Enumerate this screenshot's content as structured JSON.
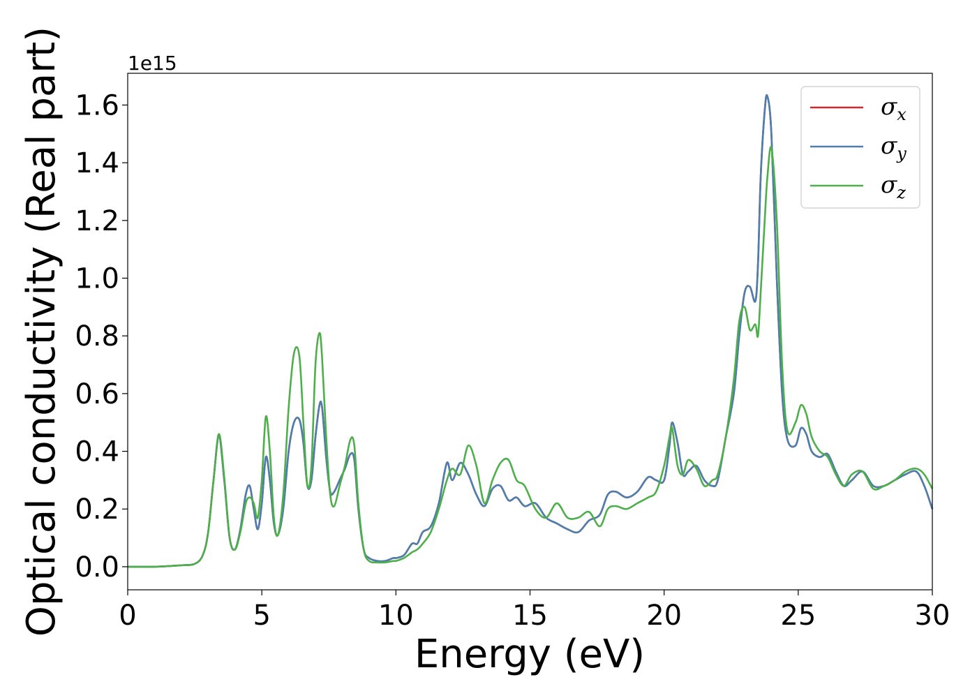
{
  "chart_data": {
    "type": "line",
    "title": "",
    "xlabel": "Energy (eV)",
    "ylabel": "Optical conductivity (Real part)",
    "y_offset_label": "1e15",
    "xlim": [
      0,
      30
    ],
    "ylim": [
      -0.08,
      1.71
    ],
    "xticks": [
      0,
      5,
      10,
      15,
      20,
      25,
      30
    ],
    "xtick_labels": [
      "0",
      "5",
      "10",
      "15",
      "20",
      "25",
      "30"
    ],
    "yticks": [
      0.0,
      0.2,
      0.4,
      0.6,
      0.8,
      1.0,
      1.2,
      1.4,
      1.6
    ],
    "ytick_labels": [
      "0.0",
      "0.2",
      "0.4",
      "0.6",
      "0.8",
      "1.0",
      "1.2",
      "1.4",
      "1.6"
    ],
    "grid": false,
    "legend_position": "top-right",
    "series": [
      {
        "name": "σx",
        "symbol": "σ",
        "subscript": "x",
        "color": "#d62728",
        "x": [
          0,
          1,
          2,
          2.5,
          2.8,
          3.0,
          3.2,
          3.4,
          3.6,
          3.8,
          4.0,
          4.2,
          4.4,
          4.55,
          4.7,
          4.85,
          5.0,
          5.15,
          5.3,
          5.45,
          5.6,
          5.8,
          6.0,
          6.2,
          6.4,
          6.55,
          6.7,
          6.85,
          7.0,
          7.15,
          7.25,
          7.4,
          7.55,
          7.7,
          7.9,
          8.1,
          8.3,
          8.45,
          8.6,
          8.8,
          9.0,
          9.3,
          9.6,
          9.9,
          10.0,
          10.3,
          10.6,
          10.8,
          11.0,
          11.3,
          11.6,
          11.9,
          12.1,
          12.4,
          12.7,
          13.0,
          13.3,
          13.6,
          13.9,
          14.2,
          14.5,
          14.8,
          15.2,
          15.6,
          16.0,
          16.4,
          16.8,
          17.2,
          17.6,
          17.9,
          18.2,
          18.6,
          19.0,
          19.4,
          19.7,
          20.0,
          20.2,
          20.3,
          20.5,
          20.7,
          20.9,
          21.2,
          21.5,
          21.8,
          22.0,
          22.3,
          22.6,
          22.8,
          23.0,
          23.2,
          23.4,
          23.5,
          23.6,
          23.75,
          23.85,
          24.0,
          24.2,
          24.4,
          24.6,
          24.9,
          25.1,
          25.3,
          25.5,
          25.8,
          26.1,
          26.4,
          26.7,
          27.0,
          27.4,
          27.8,
          28.2,
          28.6,
          29.0,
          29.4,
          29.7,
          30.0
        ],
        "y": [
          0.0,
          0.0,
          0.005,
          0.01,
          0.04,
          0.12,
          0.3,
          0.45,
          0.3,
          0.1,
          0.06,
          0.13,
          0.25,
          0.28,
          0.2,
          0.13,
          0.22,
          0.38,
          0.3,
          0.15,
          0.11,
          0.2,
          0.4,
          0.5,
          0.51,
          0.43,
          0.28,
          0.3,
          0.45,
          0.56,
          0.55,
          0.38,
          0.26,
          0.26,
          0.3,
          0.34,
          0.39,
          0.37,
          0.2,
          0.06,
          0.03,
          0.02,
          0.02,
          0.03,
          0.03,
          0.04,
          0.08,
          0.08,
          0.12,
          0.14,
          0.22,
          0.36,
          0.3,
          0.36,
          0.32,
          0.25,
          0.21,
          0.27,
          0.28,
          0.23,
          0.24,
          0.21,
          0.22,
          0.17,
          0.15,
          0.13,
          0.12,
          0.16,
          0.18,
          0.25,
          0.26,
          0.24,
          0.26,
          0.31,
          0.3,
          0.3,
          0.42,
          0.5,
          0.43,
          0.32,
          0.33,
          0.35,
          0.3,
          0.28,
          0.3,
          0.45,
          0.6,
          0.8,
          0.95,
          0.97,
          0.92,
          1.05,
          1.35,
          1.58,
          1.63,
          1.5,
          1.0,
          0.6,
          0.44,
          0.42,
          0.48,
          0.46,
          0.4,
          0.38,
          0.39,
          0.33,
          0.28,
          0.3,
          0.33,
          0.28,
          0.28,
          0.3,
          0.32,
          0.33,
          0.28,
          0.2
        ],
        "note": ""
      },
      {
        "name": "σy",
        "symbol": "σ",
        "subscript": "y",
        "color": "#4a7fb0",
        "x": [
          0,
          1,
          2,
          2.5,
          2.8,
          3.0,
          3.2,
          3.4,
          3.6,
          3.8,
          4.0,
          4.2,
          4.4,
          4.55,
          4.7,
          4.85,
          5.0,
          5.15,
          5.3,
          5.45,
          5.6,
          5.8,
          6.0,
          6.2,
          6.4,
          6.55,
          6.7,
          6.85,
          7.0,
          7.15,
          7.25,
          7.4,
          7.55,
          7.7,
          7.9,
          8.1,
          8.3,
          8.45,
          8.6,
          8.8,
          9.0,
          9.3,
          9.6,
          9.9,
          10.0,
          10.3,
          10.6,
          10.8,
          11.0,
          11.3,
          11.6,
          11.9,
          12.1,
          12.4,
          12.7,
          13.0,
          13.3,
          13.6,
          13.9,
          14.2,
          14.5,
          14.8,
          15.2,
          15.6,
          16.0,
          16.4,
          16.8,
          17.2,
          17.6,
          17.9,
          18.2,
          18.6,
          19.0,
          19.4,
          19.7,
          20.0,
          20.2,
          20.3,
          20.5,
          20.7,
          20.9,
          21.2,
          21.5,
          21.8,
          22.0,
          22.3,
          22.6,
          22.8,
          23.0,
          23.2,
          23.4,
          23.5,
          23.6,
          23.75,
          23.85,
          24.0,
          24.2,
          24.4,
          24.6,
          24.9,
          25.1,
          25.3,
          25.5,
          25.8,
          26.1,
          26.4,
          26.7,
          27.0,
          27.4,
          27.8,
          28.2,
          28.6,
          29.0,
          29.4,
          29.7,
          30.0
        ],
        "y": [
          0.0,
          0.0,
          0.005,
          0.01,
          0.04,
          0.12,
          0.3,
          0.45,
          0.3,
          0.1,
          0.06,
          0.13,
          0.25,
          0.28,
          0.2,
          0.13,
          0.22,
          0.38,
          0.3,
          0.15,
          0.11,
          0.2,
          0.4,
          0.5,
          0.51,
          0.43,
          0.28,
          0.3,
          0.45,
          0.56,
          0.55,
          0.38,
          0.26,
          0.26,
          0.3,
          0.34,
          0.39,
          0.37,
          0.2,
          0.06,
          0.03,
          0.02,
          0.02,
          0.03,
          0.03,
          0.04,
          0.08,
          0.08,
          0.12,
          0.14,
          0.22,
          0.36,
          0.3,
          0.36,
          0.32,
          0.25,
          0.21,
          0.27,
          0.28,
          0.23,
          0.24,
          0.21,
          0.22,
          0.17,
          0.15,
          0.13,
          0.12,
          0.16,
          0.18,
          0.25,
          0.26,
          0.24,
          0.26,
          0.31,
          0.3,
          0.3,
          0.42,
          0.5,
          0.43,
          0.32,
          0.33,
          0.35,
          0.3,
          0.28,
          0.3,
          0.45,
          0.6,
          0.8,
          0.95,
          0.97,
          0.92,
          1.05,
          1.35,
          1.58,
          1.63,
          1.5,
          1.0,
          0.6,
          0.44,
          0.42,
          0.48,
          0.46,
          0.4,
          0.38,
          0.39,
          0.33,
          0.28,
          0.3,
          0.33,
          0.28,
          0.28,
          0.3,
          0.32,
          0.33,
          0.28,
          0.2
        ],
        "note": ""
      },
      {
        "name": "σz",
        "symbol": "σ",
        "subscript": "z",
        "color": "#4daf4a",
        "x": [
          0,
          1,
          2,
          2.5,
          2.8,
          3.0,
          3.2,
          3.4,
          3.6,
          3.8,
          4.0,
          4.2,
          4.4,
          4.55,
          4.7,
          4.85,
          5.0,
          5.15,
          5.3,
          5.45,
          5.6,
          5.8,
          6.0,
          6.2,
          6.4,
          6.55,
          6.7,
          6.85,
          7.0,
          7.15,
          7.25,
          7.4,
          7.55,
          7.7,
          7.9,
          8.1,
          8.3,
          8.45,
          8.6,
          8.8,
          9.0,
          9.3,
          9.6,
          9.9,
          10.0,
          10.3,
          10.6,
          10.8,
          11.0,
          11.3,
          11.6,
          11.9,
          12.1,
          12.4,
          12.7,
          13.0,
          13.3,
          13.6,
          13.9,
          14.2,
          14.5,
          14.8,
          15.2,
          15.6,
          16.0,
          16.4,
          16.8,
          17.2,
          17.6,
          17.9,
          18.2,
          18.6,
          19.0,
          19.4,
          19.7,
          20.0,
          20.2,
          20.3,
          20.5,
          20.7,
          20.9,
          21.2,
          21.5,
          21.8,
          22.0,
          22.3,
          22.6,
          22.8,
          23.0,
          23.2,
          23.4,
          23.5,
          23.6,
          23.75,
          23.85,
          24.0,
          24.2,
          24.4,
          24.6,
          24.9,
          25.1,
          25.3,
          25.5,
          25.8,
          26.1,
          26.4,
          26.7,
          27.0,
          27.4,
          27.8,
          28.2,
          28.6,
          29.0,
          29.4,
          29.7,
          30.0
        ],
        "y": [
          0.0,
          0.0,
          0.005,
          0.01,
          0.04,
          0.12,
          0.3,
          0.46,
          0.31,
          0.1,
          0.06,
          0.12,
          0.22,
          0.24,
          0.22,
          0.17,
          0.3,
          0.52,
          0.4,
          0.17,
          0.11,
          0.25,
          0.55,
          0.74,
          0.73,
          0.5,
          0.28,
          0.35,
          0.7,
          0.81,
          0.72,
          0.45,
          0.25,
          0.21,
          0.28,
          0.35,
          0.44,
          0.42,
          0.22,
          0.06,
          0.02,
          0.015,
          0.015,
          0.02,
          0.02,
          0.03,
          0.05,
          0.06,
          0.08,
          0.12,
          0.2,
          0.3,
          0.34,
          0.32,
          0.42,
          0.35,
          0.22,
          0.3,
          0.36,
          0.37,
          0.3,
          0.28,
          0.2,
          0.17,
          0.22,
          0.17,
          0.17,
          0.19,
          0.14,
          0.2,
          0.21,
          0.2,
          0.22,
          0.24,
          0.26,
          0.35,
          0.45,
          0.48,
          0.35,
          0.32,
          0.37,
          0.34,
          0.28,
          0.3,
          0.32,
          0.45,
          0.65,
          0.85,
          0.9,
          0.82,
          0.84,
          0.8,
          0.95,
          1.2,
          1.35,
          1.45,
          1.2,
          0.7,
          0.47,
          0.5,
          0.56,
          0.53,
          0.45,
          0.4,
          0.38,
          0.32,
          0.28,
          0.32,
          0.33,
          0.27,
          0.28,
          0.3,
          0.33,
          0.34,
          0.32,
          0.27
        ],
        "note": ""
      }
    ]
  }
}
